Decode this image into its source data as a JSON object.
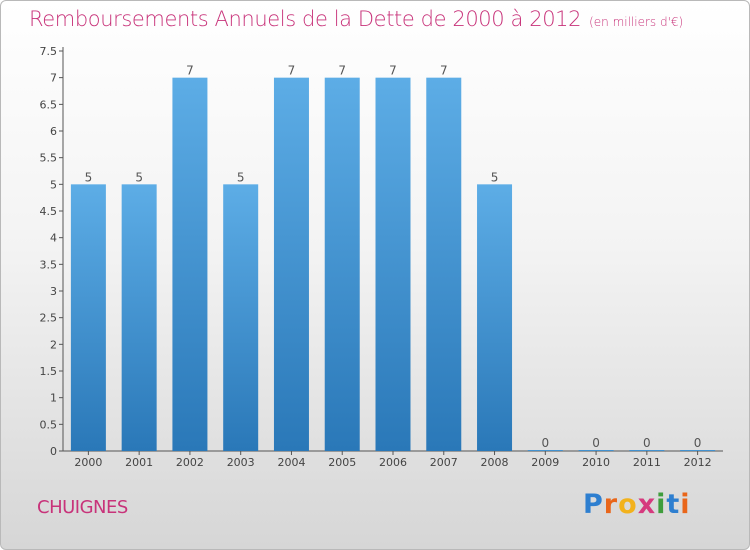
{
  "chart_data": {
    "type": "bar",
    "title": "Remboursements Annuels de la Dette de 2000 à 2012",
    "subtitle": "(en milliers d'€)",
    "categories": [
      "2000",
      "2001",
      "2002",
      "2003",
      "2004",
      "2005",
      "2006",
      "2007",
      "2008",
      "2009",
      "2010",
      "2011",
      "2012"
    ],
    "values": [
      5,
      5,
      7,
      5,
      7,
      7,
      7,
      7,
      5,
      0,
      0,
      0,
      0
    ],
    "value_labels": [
      "5",
      "5",
      "7",
      "5",
      "7",
      "7",
      "7",
      "7",
      "5",
      "0",
      "0",
      "0",
      "0"
    ],
    "y_ticks": [
      "0",
      "0.5",
      "1",
      "1.5",
      "2",
      "2.5",
      "3",
      "3.5",
      "4",
      "4.5",
      "5",
      "5.5",
      "6",
      "6.5",
      "7",
      "7.5"
    ],
    "ylim": [
      0,
      7.5
    ],
    "xlabel": "",
    "ylabel": "",
    "grid": false,
    "bar_color_top": "#5dade6",
    "bar_color_bottom": "#2a78b8"
  },
  "footer": {
    "commune": "CHUIGNES",
    "logo_letters": [
      "P",
      "r",
      "o",
      "x",
      "i",
      "t",
      "i"
    ],
    "logo_colors": [
      "#2e7fd0",
      "#e9661a",
      "#f2b21c",
      "#d63a7e",
      "#3f9d3c",
      "#2e7fd0",
      "#e9661a"
    ]
  }
}
